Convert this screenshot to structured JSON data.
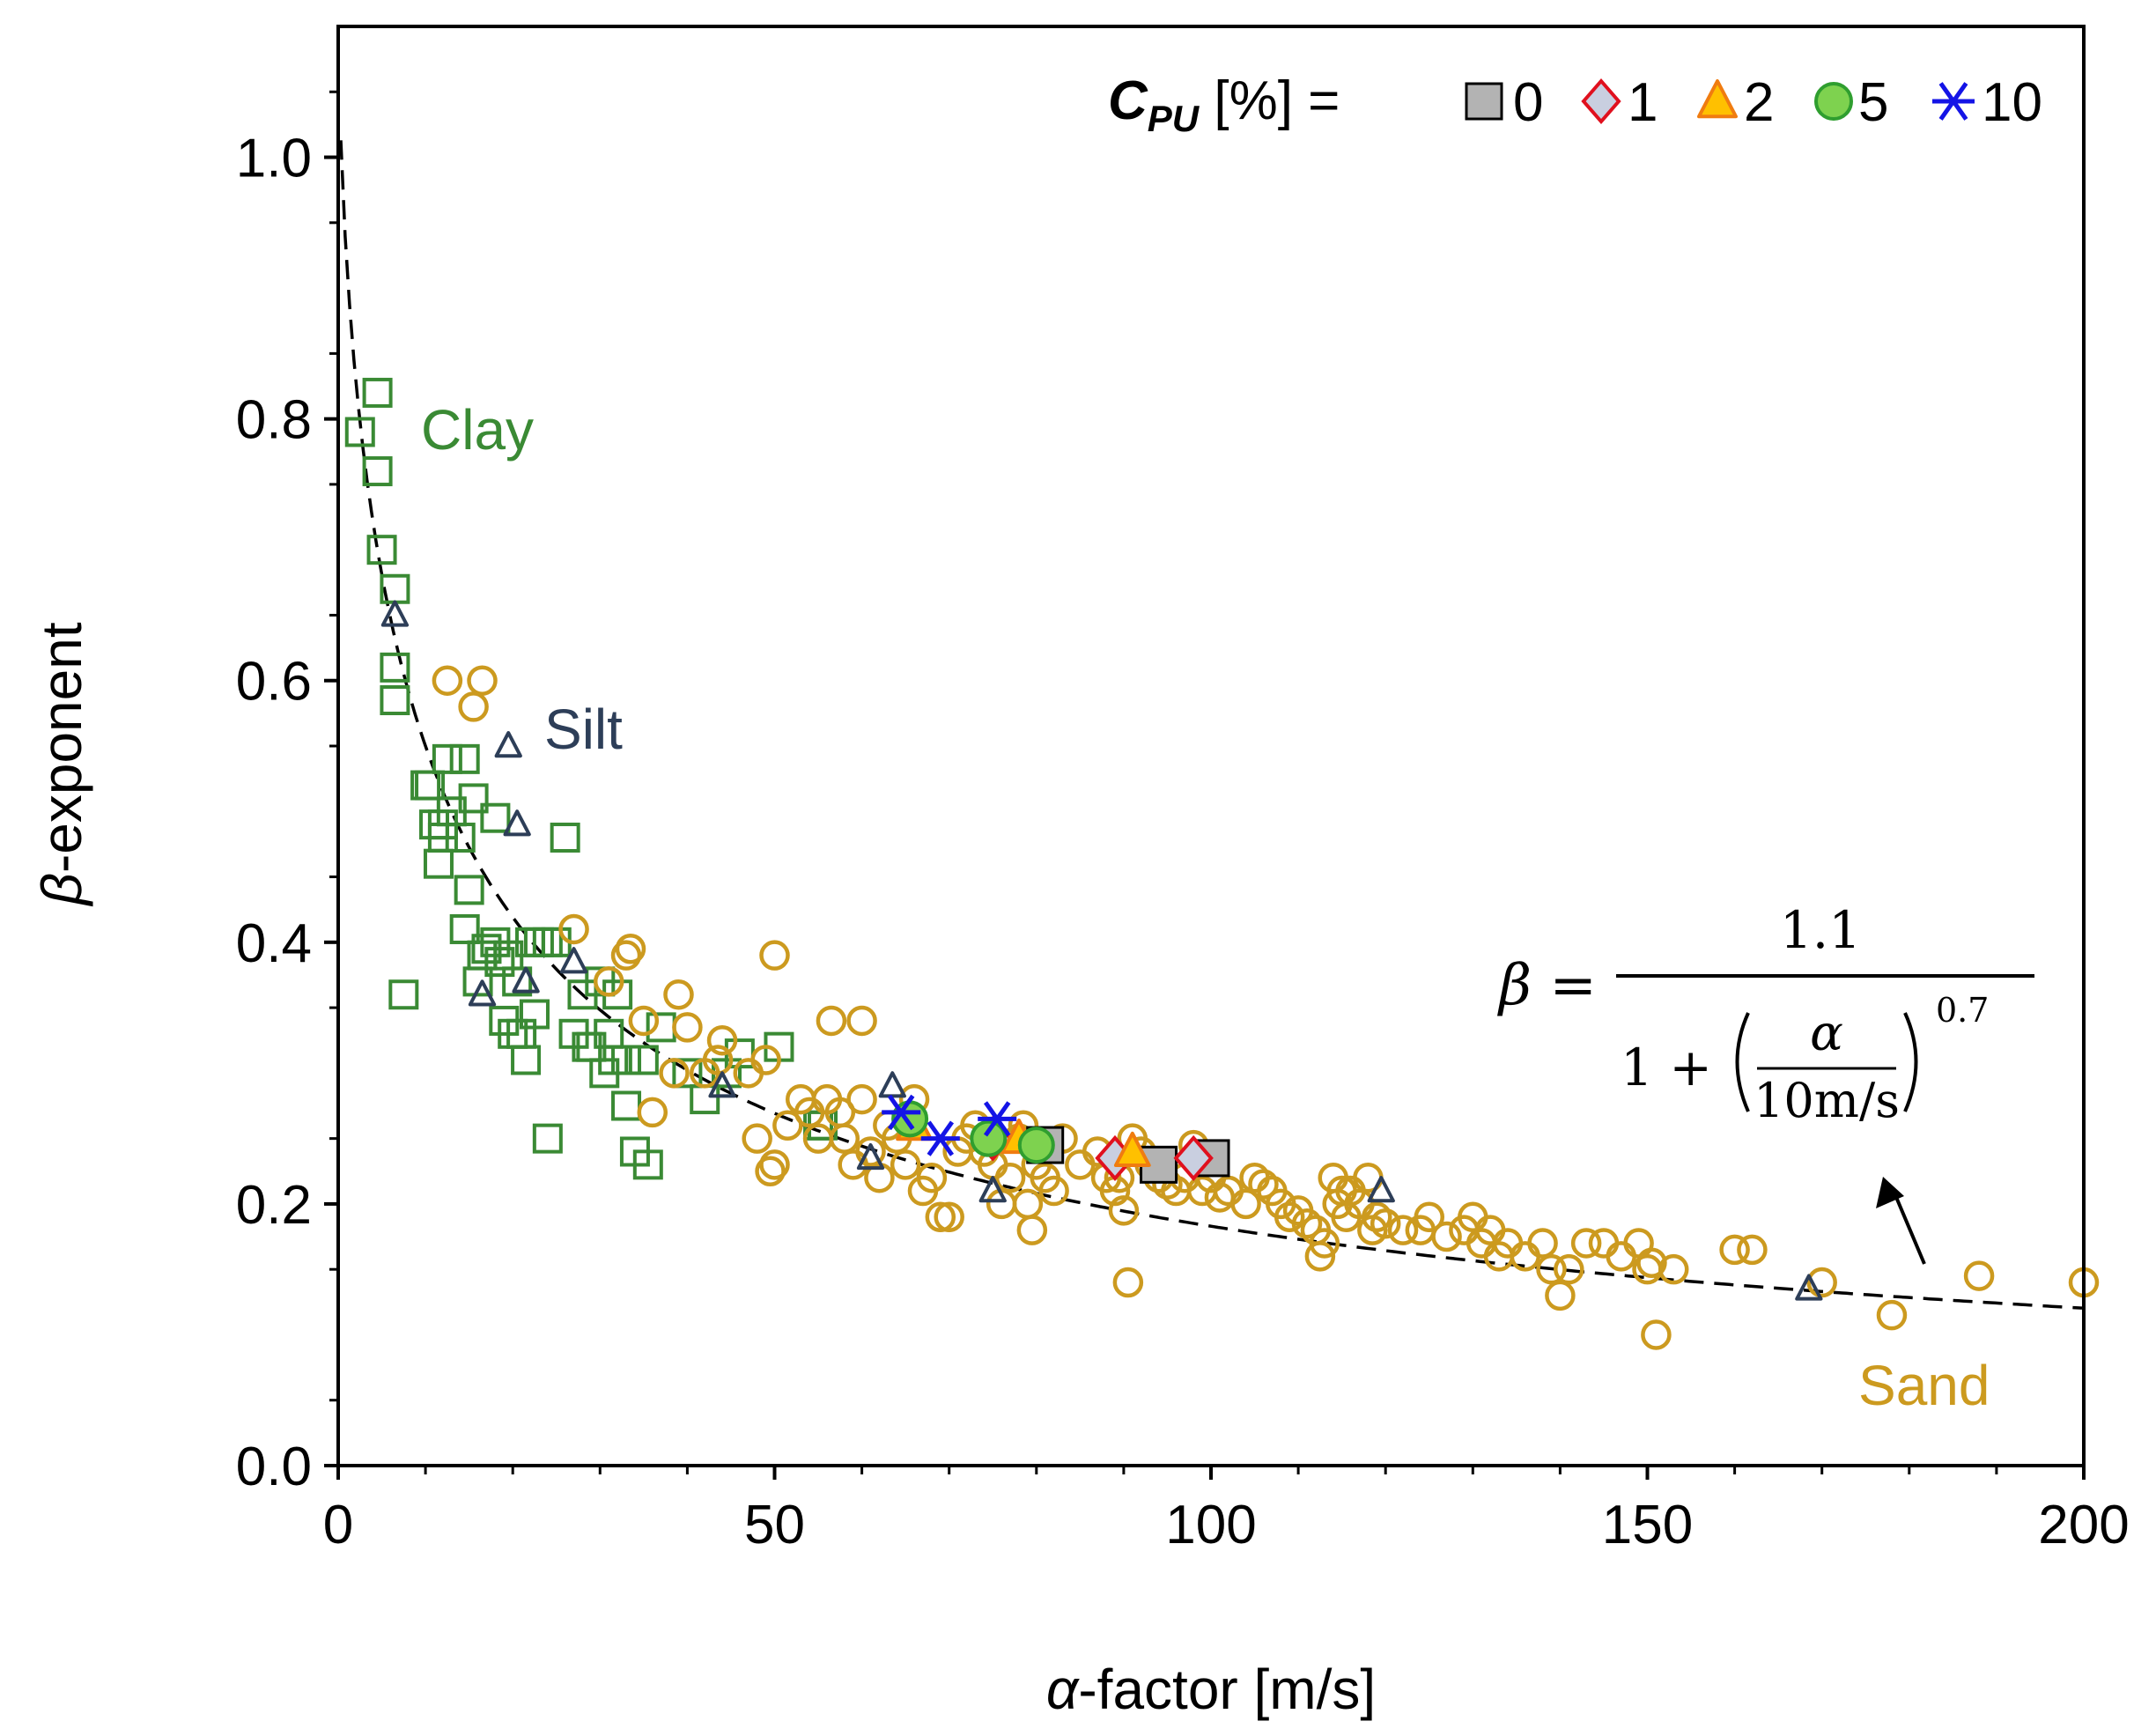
{
  "chart_data": {
    "type": "scatter",
    "xlabel_symbol": "α",
    "xlabel_rest": "-factor [m/s]",
    "ylabel_symbol": "β",
    "ylabel_rest": "-exponent",
    "xlim": [
      0,
      200
    ],
    "ylim": [
      0,
      1.1
    ],
    "x_ticks": [
      0,
      50,
      100,
      150,
      200
    ],
    "x_tick_labels": [
      "0",
      "50",
      "100",
      "150",
      "200"
    ],
    "y_ticks": [
      0,
      0.2,
      0.4,
      0.6,
      0.8,
      1.0
    ],
    "y_tick_labels": [
      "0.0",
      "0.2",
      "0.4",
      "0.6",
      "0.8",
      "1.0"
    ],
    "grid": false,
    "legend": {
      "title_main": "C",
      "title_sub": "PU",
      "title_rest": " [%] =",
      "placement": "top-right",
      "entries": [
        {
          "label": "0",
          "marker": "square-filled",
          "fill": "#b3b3b3",
          "stroke": "#000000"
        },
        {
          "label": "1",
          "marker": "diamond-filled",
          "fill": "#c9cfe0",
          "stroke": "#e0101e"
        },
        {
          "label": "2",
          "marker": "triangle-filled",
          "fill": "#ffc000",
          "stroke": "#f07c10"
        },
        {
          "label": "5",
          "marker": "circle-filled",
          "fill": "#7ed24f",
          "stroke": "#2f9e2f"
        },
        {
          "label": "10",
          "marker": "star",
          "fill": "none",
          "stroke": "#1414e6"
        }
      ]
    },
    "annotations": {
      "clay": "Clay",
      "silt": "Silt",
      "sand": "Sand",
      "formula_lhs": "β =",
      "formula_numerator": "1.1",
      "formula_one_plus": "1 +",
      "formula_alpha": "α",
      "formula_unit": "10m/s",
      "formula_exponent": "0.7"
    },
    "fit_curve": {
      "name": "β = 1.1 / (1 + (α/10)^0.7)",
      "a": 1.1,
      "ref": 10,
      "n": 0.7,
      "style": "dashed",
      "color": "#000000"
    },
    "series": [
      {
        "name": "Clay",
        "marker": "square-open",
        "color": "#3a8a34",
        "points": [
          [
            2.5,
            0.79
          ],
          [
            4.5,
            0.82
          ],
          [
            4.5,
            0.76
          ],
          [
            5,
            0.7
          ],
          [
            6.5,
            0.67
          ],
          [
            6.5,
            0.61
          ],
          [
            6.5,
            0.585
          ],
          [
            7.5,
            0.36
          ],
          [
            10,
            0.52
          ],
          [
            10.5,
            0.52
          ],
          [
            11,
            0.49
          ],
          [
            11.5,
            0.46
          ],
          [
            12,
            0.48
          ],
          [
            12.5,
            0.54
          ],
          [
            13,
            0.5
          ],
          [
            14,
            0.48
          ],
          [
            14.5,
            0.54
          ],
          [
            15.5,
            0.51
          ],
          [
            15,
            0.44
          ],
          [
            14.5,
            0.41
          ],
          [
            16,
            0.37
          ],
          [
            17,
            0.395
          ],
          [
            18,
            0.4
          ],
          [
            18.5,
            0.385
          ],
          [
            18,
            0.495
          ],
          [
            19,
            0.34
          ],
          [
            19.5,
            0.39
          ],
          [
            20.5,
            0.37
          ],
          [
            21,
            0.33
          ],
          [
            21.5,
            0.31
          ],
          [
            22,
            0.4
          ],
          [
            23,
            0.4
          ],
          [
            22.5,
            0.345
          ],
          [
            24,
            0.4
          ],
          [
            25,
            0.4
          ],
          [
            24,
            0.25
          ],
          [
            26,
            0.48
          ],
          [
            27,
            0.33
          ],
          [
            28,
            0.36
          ],
          [
            29,
            0.32
          ],
          [
            30,
            0.37
          ],
          [
            30.5,
            0.3
          ],
          [
            31,
            0.33
          ],
          [
            31.5,
            0.31
          ],
          [
            32,
            0.36
          ],
          [
            33,
            0.31
          ],
          [
            33,
            0.275
          ],
          [
            34,
            0.24
          ],
          [
            35.5,
            0.23
          ],
          [
            35,
            0.31
          ],
          [
            37,
            0.335
          ],
          [
            40,
            0.3
          ],
          [
            42,
            0.28
          ],
          [
            44.5,
            0.3
          ],
          [
            46,
            0.315
          ],
          [
            50.5,
            0.32
          ],
          [
            55,
            0.26
          ],
          [
            55.5,
            0.26
          ],
          [
            12,
            0.49
          ],
          [
            16.5,
            0.39
          ],
          [
            20,
            0.33
          ],
          [
            28.5,
            0.32
          ]
        ]
      },
      {
        "name": "Silt",
        "marker": "triangle-open",
        "color": "#2d3e58",
        "points": [
          [
            6.5,
            0.65
          ],
          [
            19.5,
            0.55
          ],
          [
            20.5,
            0.49
          ],
          [
            16.5,
            0.36
          ],
          [
            21.5,
            0.37
          ],
          [
            27,
            0.385
          ],
          [
            44,
            0.29
          ],
          [
            63.5,
            0.29
          ],
          [
            61,
            0.235
          ],
          [
            75,
            0.21
          ],
          [
            119.5,
            0.21
          ],
          [
            168.5,
            0.135
          ]
        ]
      },
      {
        "name": "Sand",
        "marker": "circle-open",
        "color": "#cc9a1f",
        "points": [
          [
            12.5,
            0.6
          ],
          [
            16.5,
            0.6
          ],
          [
            15.5,
            0.58
          ],
          [
            27,
            0.41
          ],
          [
            33,
            0.39
          ],
          [
            33.5,
            0.395
          ],
          [
            31,
            0.37
          ],
          [
            35,
            0.34
          ],
          [
            39,
            0.36
          ],
          [
            40,
            0.335
          ],
          [
            38.5,
            0.3
          ],
          [
            36,
            0.27
          ],
          [
            42,
            0.3
          ],
          [
            43.5,
            0.31
          ],
          [
            44,
            0.325
          ],
          [
            47,
            0.3
          ],
          [
            49,
            0.31
          ],
          [
            50,
            0.39
          ],
          [
            48,
            0.25
          ],
          [
            49.5,
            0.225
          ],
          [
            50,
            0.23
          ],
          [
            51.5,
            0.26
          ],
          [
            53,
            0.28
          ],
          [
            54,
            0.27
          ],
          [
            55,
            0.25
          ],
          [
            56,
            0.28
          ],
          [
            56.5,
            0.34
          ],
          [
            57.5,
            0.27
          ],
          [
            58,
            0.25
          ],
          [
            59,
            0.23
          ],
          [
            60,
            0.34
          ],
          [
            60,
            0.28
          ],
          [
            61,
            0.24
          ],
          [
            62,
            0.22
          ],
          [
            63,
            0.26
          ],
          [
            64,
            0.25
          ],
          [
            65,
            0.23
          ],
          [
            66,
            0.28
          ],
          [
            67,
            0.21
          ],
          [
            68,
            0.22
          ],
          [
            69,
            0.19
          ],
          [
            70,
            0.19
          ],
          [
            71,
            0.24
          ],
          [
            72,
            0.25
          ],
          [
            73,
            0.26
          ],
          [
            74,
            0.24
          ],
          [
            75,
            0.23
          ],
          [
            76,
            0.2
          ],
          [
            77,
            0.22
          ],
          [
            78,
            0.25
          ],
          [
            78.5,
            0.26
          ],
          [
            79,
            0.2
          ],
          [
            79.5,
            0.18
          ],
          [
            80,
            0.23
          ],
          [
            81,
            0.22
          ],
          [
            82,
            0.21
          ],
          [
            83,
            0.25
          ],
          [
            85,
            0.23
          ],
          [
            87,
            0.24
          ],
          [
            88,
            0.22
          ],
          [
            89,
            0.21
          ],
          [
            89.5,
            0.22
          ],
          [
            90,
            0.195
          ],
          [
            90.5,
            0.14
          ],
          [
            91,
            0.25
          ],
          [
            92,
            0.24
          ],
          [
            93,
            0.23
          ],
          [
            94,
            0.22
          ],
          [
            95,
            0.215
          ],
          [
            96,
            0.21
          ],
          [
            97,
            0.22
          ],
          [
            98,
            0.245
          ],
          [
            99,
            0.21
          ],
          [
            100,
            0.22
          ],
          [
            101,
            0.205
          ],
          [
            102,
            0.21
          ],
          [
            104,
            0.2
          ],
          [
            105,
            0.22
          ],
          [
            106,
            0.215
          ],
          [
            107,
            0.21
          ],
          [
            108,
            0.2
          ],
          [
            109,
            0.19
          ],
          [
            110,
            0.195
          ],
          [
            111,
            0.185
          ],
          [
            112,
            0.18
          ],
          [
            112.5,
            0.16
          ],
          [
            113,
            0.17
          ],
          [
            114,
            0.22
          ],
          [
            114.5,
            0.2
          ],
          [
            115,
            0.21
          ],
          [
            115.5,
            0.19
          ],
          [
            116,
            0.21
          ],
          [
            117,
            0.2
          ],
          [
            118,
            0.22
          ],
          [
            118.5,
            0.18
          ],
          [
            119,
            0.19
          ],
          [
            120,
            0.185
          ],
          [
            122,
            0.18
          ],
          [
            124,
            0.18
          ],
          [
            125,
            0.19
          ],
          [
            127,
            0.175
          ],
          [
            129,
            0.18
          ],
          [
            130,
            0.19
          ],
          [
            131,
            0.17
          ],
          [
            132,
            0.18
          ],
          [
            133,
            0.16
          ],
          [
            134,
            0.17
          ],
          [
            136,
            0.16
          ],
          [
            138,
            0.17
          ],
          [
            139,
            0.15
          ],
          [
            140,
            0.13
          ],
          [
            141,
            0.15
          ],
          [
            143,
            0.17
          ],
          [
            145,
            0.17
          ],
          [
            147,
            0.16
          ],
          [
            149,
            0.17
          ],
          [
            150,
            0.15
          ],
          [
            150.5,
            0.155
          ],
          [
            151,
            0.1
          ],
          [
            153,
            0.15
          ],
          [
            160,
            0.165
          ],
          [
            162,
            0.165
          ],
          [
            170,
            0.14
          ],
          [
            178,
            0.115
          ],
          [
            188,
            0.145
          ],
          [
            200,
            0.14
          ]
        ]
      },
      {
        "name": "CPU 0 %",
        "marker": "square-filled",
        "fill": "#b3b3b3",
        "stroke": "#000000",
        "points": [
          [
            81,
            0.245
          ],
          [
            94,
            0.23
          ],
          [
            100,
            0.235
          ]
        ]
      },
      {
        "name": "CPU 1 %",
        "marker": "diamond-filled",
        "fill": "#c9cfe0",
        "stroke": "#e0101e",
        "points": [
          [
            75,
            0.25
          ],
          [
            89,
            0.235
          ],
          [
            98,
            0.235
          ]
        ]
      },
      {
        "name": "CPU 2 %",
        "marker": "triangle-filled",
        "fill": "#ffc000",
        "stroke": "#f07c10",
        "points": [
          [
            66,
            0.26
          ],
          [
            78,
            0.25
          ],
          [
            91,
            0.24
          ]
        ]
      },
      {
        "name": "CPU 5 %",
        "marker": "circle-filled",
        "fill": "#7ed24f",
        "stroke": "#2f9e2f",
        "points": [
          [
            65.5,
            0.265
          ],
          [
            74.5,
            0.25
          ],
          [
            80,
            0.245
          ]
        ]
      },
      {
        "name": "CPU 10 %",
        "marker": "star",
        "fill": "none",
        "stroke": "#1414e6",
        "points": [
          [
            64.5,
            0.27
          ],
          [
            69,
            0.25
          ],
          [
            75.5,
            0.265
          ]
        ]
      }
    ]
  }
}
